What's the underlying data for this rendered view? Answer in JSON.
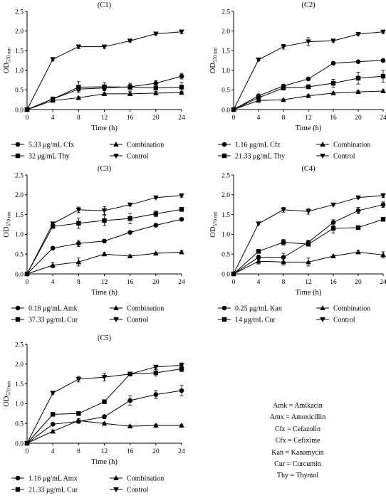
{
  "chart_data": [
    {
      "type": "line",
      "title": "(C1)",
      "xlabel": "Time (h)",
      "ylabel": "OD",
      "ylabel_sub": "570 nm",
      "x": [
        0,
        4,
        8,
        12,
        16,
        20,
        24
      ],
      "xlim": [
        0,
        24
      ],
      "ylim": [
        0,
        2.5
      ],
      "xticks": [
        "0",
        "4",
        "8",
        "12",
        "16",
        "20",
        "24"
      ],
      "yticks": [
        "0.0",
        "0.5",
        "1.0",
        "1.5",
        "2.0",
        "2.5"
      ],
      "grid": false,
      "legend_position": "bottom",
      "series": [
        {
          "name": "5.33 μg/mL Cfx",
          "marker": "circle",
          "values": [
            0,
            0.27,
            0.52,
            0.55,
            0.58,
            0.67,
            0.85
          ],
          "errors": [
            0,
            0.03,
            0.05,
            0.05,
            0.06,
            0.07,
            0.07
          ]
        },
        {
          "name": "Combination",
          "marker": "triangle-up",
          "values": [
            0,
            0.23,
            0.3,
            0.4,
            0.4,
            0.42,
            0.43
          ],
          "errors": [
            0,
            0.02,
            0.03,
            0.03,
            0.04,
            0.04,
            0.04
          ]
        },
        {
          "name": "32 μg/mL Thy",
          "marker": "square",
          "values": [
            0,
            0.27,
            0.57,
            0.58,
            0.57,
            0.55,
            0.57
          ],
          "errors": [
            0,
            0.03,
            0.14,
            0.1,
            0.1,
            0.12,
            0.12
          ]
        },
        {
          "name": "Control",
          "marker": "triangle-down",
          "values": [
            0,
            1.28,
            1.6,
            1.6,
            1.75,
            1.93,
            1.98
          ],
          "errors": [
            0,
            0.03,
            0.05,
            0.04,
            0.03,
            0.03,
            0.05
          ]
        }
      ]
    },
    {
      "type": "line",
      "title": "(C2)",
      "xlabel": "Time (h)",
      "ylabel": "OD",
      "ylabel_sub": "570 nm",
      "x": [
        0,
        4,
        8,
        12,
        16,
        20,
        24
      ],
      "xlim": [
        0,
        24
      ],
      "ylim": [
        0,
        2.5
      ],
      "xticks": [
        "0",
        "4",
        "8",
        "12",
        "16",
        "20",
        "24"
      ],
      "yticks": [
        "0.0",
        "0.5",
        "1.0",
        "1.5",
        "2.0",
        "2.5"
      ],
      "grid": false,
      "legend_position": "bottom",
      "series": [
        {
          "name": "1.16 μg/mL Cfz",
          "marker": "circle",
          "values": [
            0,
            0.35,
            0.6,
            0.78,
            1.18,
            1.22,
            1.25
          ],
          "errors": [
            0,
            0.03,
            0.04,
            0.04,
            0.04,
            0.03,
            0.03
          ]
        },
        {
          "name": "Combination",
          "marker": "triangle-up",
          "values": [
            0,
            0.23,
            0.25,
            0.35,
            0.42,
            0.45,
            0.47
          ],
          "errors": [
            0,
            0.02,
            0.02,
            0.03,
            0.03,
            0.03,
            0.03
          ]
        },
        {
          "name": "21.33 μg/mL Thy",
          "marker": "square",
          "values": [
            0,
            0.3,
            0.55,
            0.58,
            0.67,
            0.8,
            0.85
          ],
          "errors": [
            0,
            0.03,
            0.05,
            0.05,
            0.1,
            0.15,
            0.15
          ]
        },
        {
          "name": "Control",
          "marker": "triangle-down",
          "values": [
            0,
            1.27,
            1.6,
            1.73,
            1.75,
            1.92,
            1.98
          ],
          "errors": [
            0,
            0.03,
            0.06,
            0.1,
            0.03,
            0.03,
            0.04
          ]
        }
      ]
    },
    {
      "type": "line",
      "title": "(C3)",
      "xlabel": "Time (h)",
      "ylabel": "OD",
      "ylabel_sub": "570 nm",
      "x": [
        0,
        4,
        8,
        12,
        16,
        20,
        24
      ],
      "xlim": [
        0,
        24
      ],
      "ylim": [
        0,
        2.5
      ],
      "xticks": [
        "0",
        "4",
        "8",
        "12",
        "16",
        "20",
        "24"
      ],
      "yticks": [
        "0.0",
        "0.5",
        "1.0",
        "1.5",
        "2.0",
        "2.5"
      ],
      "grid": false,
      "legend_position": "bottom",
      "series": [
        {
          "name": "0.18 μg/mL Amk",
          "marker": "circle",
          "values": [
            0,
            0.65,
            0.77,
            0.83,
            1.05,
            1.23,
            1.38
          ],
          "errors": [
            0,
            0.03,
            0.08,
            0.04,
            0.03,
            0.04,
            0.04
          ]
        },
        {
          "name": "Combination",
          "marker": "triangle-up",
          "values": [
            0,
            0.22,
            0.3,
            0.5,
            0.45,
            0.52,
            0.55
          ],
          "errors": [
            0,
            0.07,
            0.1,
            0.04,
            0.03,
            0.03,
            0.04
          ]
        },
        {
          "name": "37.33 μg/mL Cur",
          "marker": "square",
          "values": [
            0,
            1.2,
            1.28,
            1.35,
            1.4,
            1.52,
            1.63
          ],
          "errors": [
            0,
            0.05,
            0.13,
            0.13,
            0.13,
            0.07,
            0.05
          ]
        },
        {
          "name": "Control",
          "marker": "triangle-down",
          "values": [
            0,
            1.27,
            1.62,
            1.6,
            1.75,
            1.93,
            1.98
          ],
          "errors": [
            0,
            0.04,
            0.07,
            0.1,
            0.03,
            0.03,
            0.04
          ]
        }
      ]
    },
    {
      "type": "line",
      "title": "(C4)",
      "xlabel": "Time (h)",
      "ylabel": "OD",
      "ylabel_sub": "570 nm",
      "x": [
        0,
        4,
        8,
        12,
        16,
        20,
        24
      ],
      "xlim": [
        0,
        24
      ],
      "ylim": [
        0,
        2.5
      ],
      "xticks": [
        "0",
        "4",
        "8",
        "12",
        "16",
        "20",
        "24"
      ],
      "yticks": [
        "0.0",
        "0.5",
        "1.0",
        "1.5",
        "2.0",
        "2.5"
      ],
      "grid": false,
      "legend_position": "bottom",
      "series": [
        {
          "name": "0.25 μg/mL Kan",
          "marker": "circle",
          "values": [
            0,
            0.42,
            0.42,
            0.8,
            1.3,
            1.6,
            1.75
          ],
          "errors": [
            0,
            0.06,
            0.1,
            0.05,
            0.07,
            0.08,
            0.07
          ]
        },
        {
          "name": "Combination",
          "marker": "triangle-up",
          "values": [
            0,
            0.32,
            0.3,
            0.3,
            0.45,
            0.55,
            0.48
          ],
          "errors": [
            0,
            0.07,
            0.08,
            0.1,
            0.03,
            0.04,
            0.08
          ]
        },
        {
          "name": "14 μg/mL Cur",
          "marker": "square",
          "values": [
            0,
            0.57,
            0.8,
            0.75,
            1.15,
            1.17,
            1.38
          ],
          "errors": [
            0,
            0.03,
            0.07,
            0.04,
            0.12,
            0.04,
            0.05
          ]
        },
        {
          "name": "Control",
          "marker": "triangle-down",
          "values": [
            0,
            1.27,
            1.62,
            1.58,
            1.75,
            1.93,
            1.98
          ],
          "errors": [
            0,
            0.03,
            0.06,
            0.07,
            0.03,
            0.03,
            0.05
          ]
        }
      ]
    },
    {
      "type": "line",
      "title": "(C5)",
      "xlabel": "Time (h)",
      "ylabel": "OD",
      "ylabel_sub": "570 nm",
      "x": [
        0,
        4,
        8,
        12,
        16,
        20,
        24
      ],
      "xlim": [
        0,
        24
      ],
      "ylim": [
        0,
        2.5
      ],
      "xticks": [
        "0",
        "4",
        "8",
        "12",
        "16",
        "20",
        "24"
      ],
      "yticks": [
        "0.0",
        "0.5",
        "1.0",
        "1.5",
        "2.0",
        "2.5"
      ],
      "grid": false,
      "legend_position": "bottom",
      "series": [
        {
          "name": "1.16 μg/mL Amx",
          "marker": "circle",
          "values": [
            0,
            0.48,
            0.55,
            0.67,
            1.08,
            1.23,
            1.33
          ],
          "errors": [
            0,
            0.03,
            0.04,
            0.05,
            0.12,
            0.1,
            0.13
          ]
        },
        {
          "name": "Combination",
          "marker": "triangle-up",
          "values": [
            0,
            0.3,
            0.57,
            0.5,
            0.43,
            0.45,
            0.45
          ],
          "errors": [
            0,
            0.03,
            0.05,
            0.03,
            0.03,
            0.03,
            0.03
          ]
        },
        {
          "name": "21.33 μg/mL Cur",
          "marker": "square",
          "values": [
            0,
            0.73,
            0.75,
            1.05,
            1.75,
            1.78,
            1.88
          ],
          "errors": [
            0,
            0.03,
            0.04,
            0.04,
            0.03,
            0.08,
            0.07
          ]
        },
        {
          "name": "Control",
          "marker": "triangle-down",
          "values": [
            0,
            1.27,
            1.62,
            1.67,
            1.75,
            1.93,
            1.97
          ],
          "errors": [
            0,
            0.03,
            0.07,
            0.1,
            0.03,
            0.04,
            0.06
          ]
        }
      ]
    }
  ],
  "abbreviations": [
    "Amk = Amikacin",
    "Amx = Amoxicillin",
    "Cfz = Cefazolin",
    "Cfx = Cefixime",
    "Kan = Kanamycin",
    "Cur = Curcumin",
    "Thy = Thymol"
  ]
}
